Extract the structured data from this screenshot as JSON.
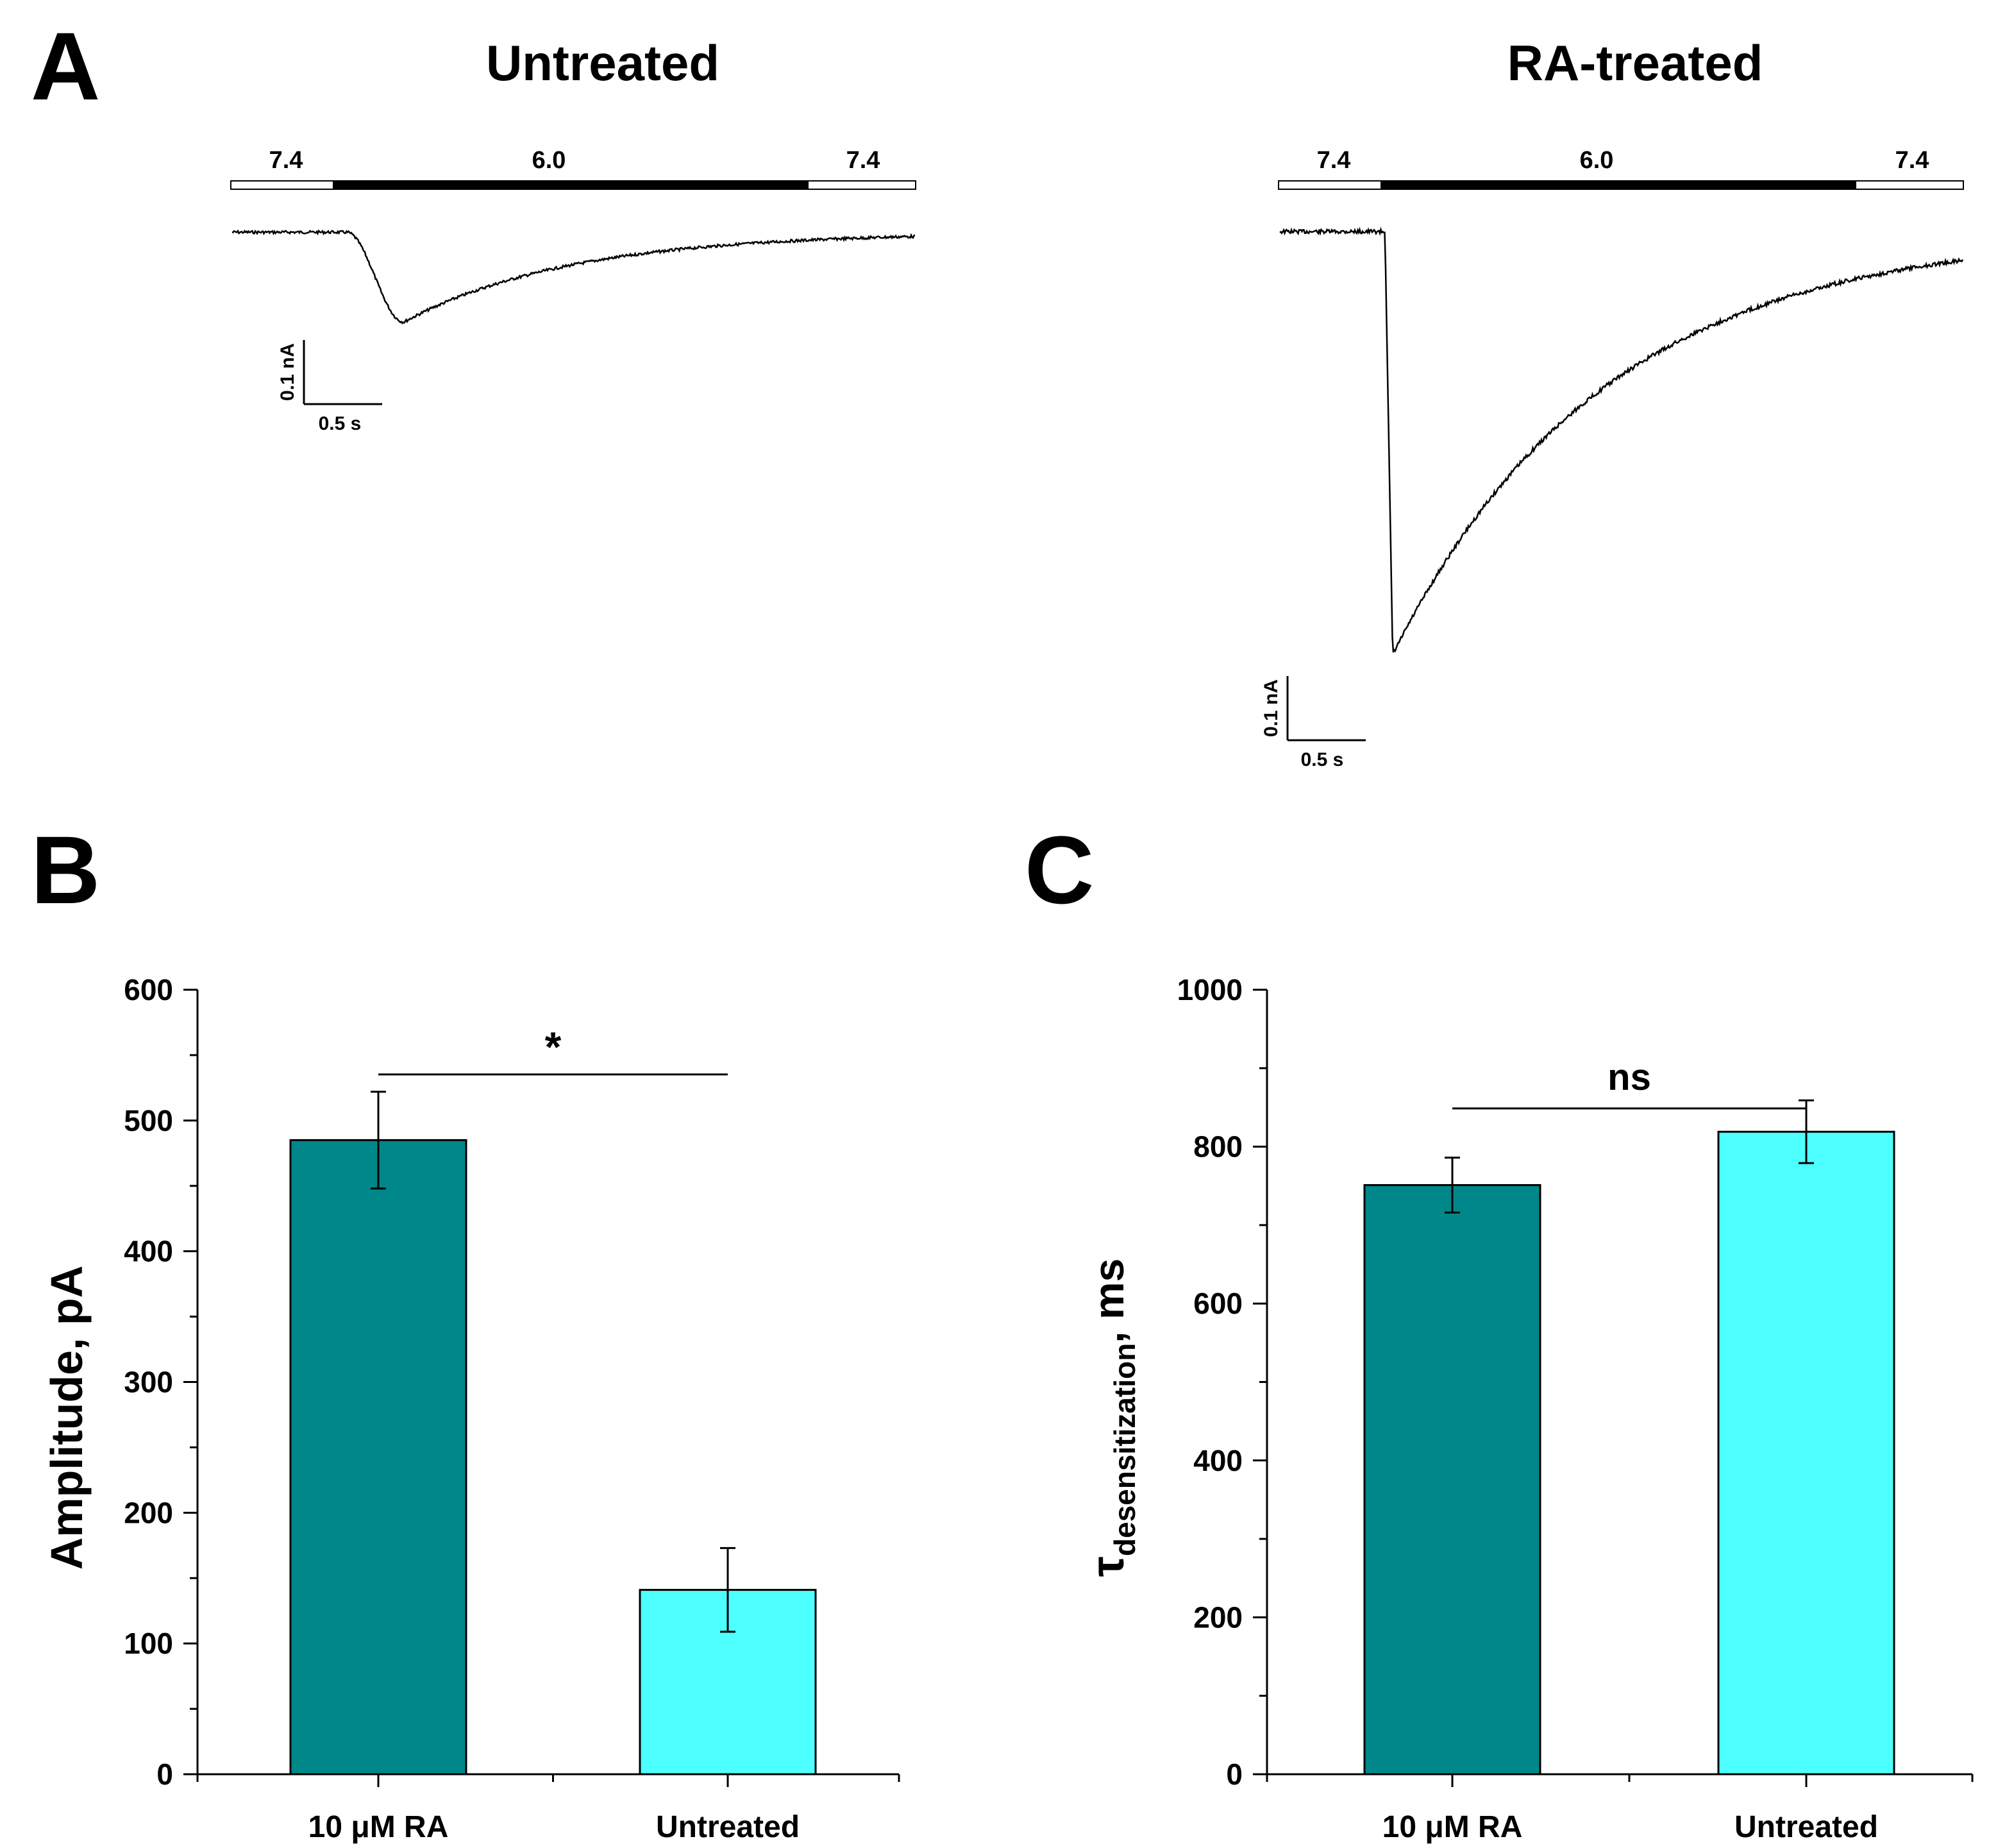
{
  "colors": {
    "ra_bar": "#00878A",
    "untreated_bar": "#4DFFFF",
    "trace": "#000000"
  },
  "panel_a": {
    "label": "A",
    "traces": [
      {
        "title": "Untreated",
        "ph_labels": [
          "7.4",
          "6.0",
          "7.4"
        ],
        "scale_bar": {
          "current_label": "0.1 nA",
          "time_label": "0.5 s"
        },
        "peak_current_nA": -0.14
      },
      {
        "title": "RA-treated",
        "ph_labels": [
          "7.4",
          "6.0",
          "7.4"
        ],
        "scale_bar": {
          "current_label": "0.1 nA",
          "time_label": "0.5 s"
        },
        "peak_current_nA": -0.66
      }
    ]
  },
  "chart_data": [
    {
      "panel_label": "B",
      "type": "bar",
      "categories": [
        "10 μM RA",
        "Untreated"
      ],
      "values": [
        485,
        141
      ],
      "errors": [
        37,
        32
      ],
      "ylabel": "Amplitude, pA",
      "ylim": [
        0,
        600
      ],
      "yticks": [
        "0",
        "100",
        "200",
        "300",
        "400",
        "500",
        "600"
      ],
      "significance": "*"
    },
    {
      "panel_label": "C",
      "type": "bar",
      "categories": [
        "10 μM RA",
        "Untreated"
      ],
      "values": [
        751,
        819
      ],
      "errors": [
        35,
        40
      ],
      "ylabel_symbol": "τ",
      "ylabel_subscript": "desensitization",
      "ylabel_unit": ", ms",
      "ylim": [
        0,
        1000
      ],
      "yticks": [
        "0",
        "200",
        "400",
        "600",
        "800",
        "1000"
      ],
      "significance": "ns"
    }
  ]
}
